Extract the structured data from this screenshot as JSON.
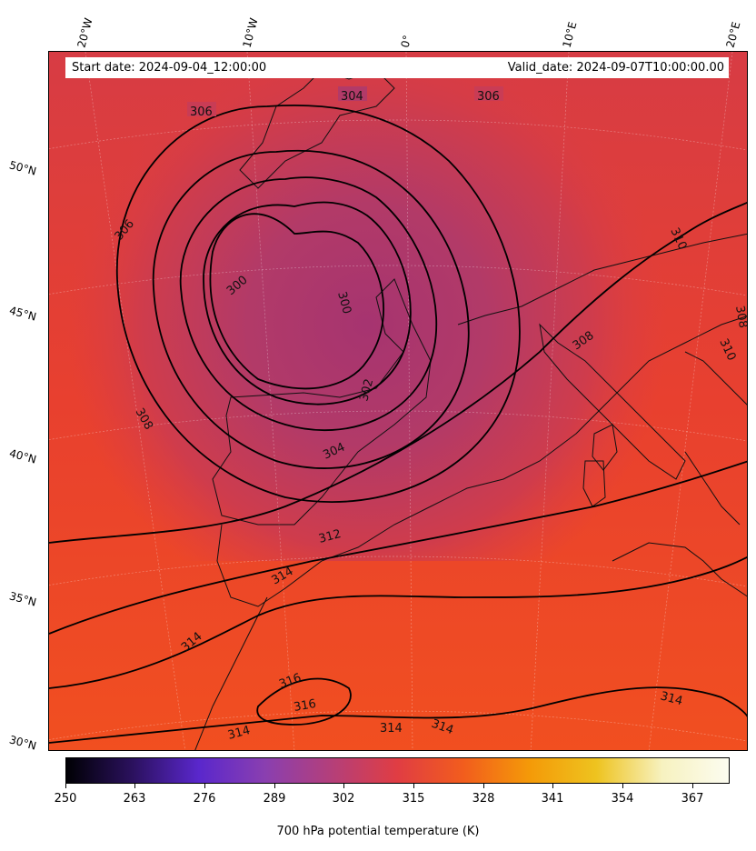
{
  "map": {
    "start_date": "Start date: 2024-09-04_12:00:00",
    "valid_date": "Valid_date: 2024-09-07T10:00:00.00",
    "lon_labels": [
      "20°W",
      "10°W",
      "0°",
      "10°E",
      "20°E"
    ],
    "lat_labels": [
      "50°N",
      "45°N",
      "40°N",
      "35°N",
      "30°N"
    ],
    "contour_labels": [
      "306",
      "304",
      "306",
      "306",
      "300",
      "300",
      "302",
      "304",
      "308",
      "310",
      "308",
      "310",
      "308",
      "312",
      "314",
      "314",
      "316",
      "316",
      "314",
      "314",
      "314",
      "314"
    ]
  },
  "colorbar": {
    "title": "700 hPa potential temperature (K)",
    "ticks": [
      "250",
      "263",
      "276",
      "289",
      "302",
      "315",
      "328",
      "341",
      "354",
      "367"
    ],
    "colors": [
      "#000004",
      "#2b115e",
      "#5a27cc",
      "#8a3fb0",
      "#b43f7a",
      "#e03d43",
      "#f25d1d",
      "#f49a08",
      "#eec31f",
      "#f7f2c0",
      "#fcfcf0"
    ]
  }
}
